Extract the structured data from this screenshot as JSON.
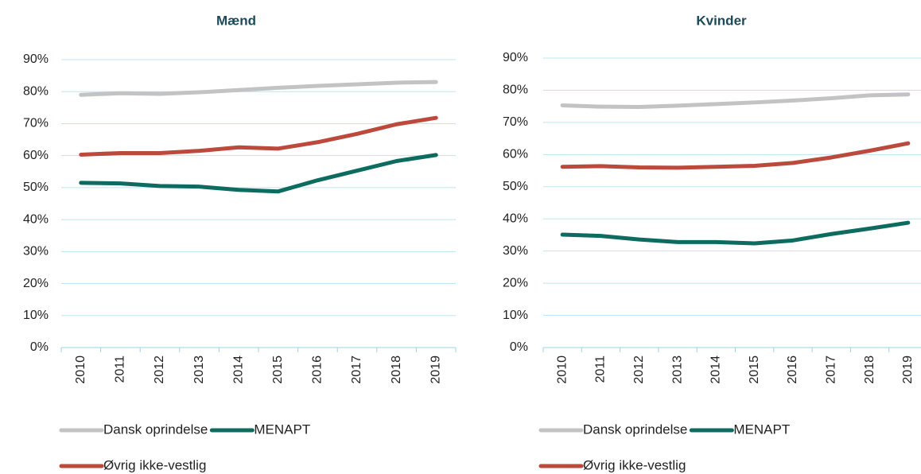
{
  "chart_data": [
    {
      "type": "line",
      "title": "Mænd",
      "categories": [
        "2010",
        "2011",
        "2012",
        "2013",
        "2014",
        "2015",
        "2016",
        "2017",
        "2018",
        "2019"
      ],
      "series": [
        {
          "name": "Dansk oprindelse",
          "color": "#c3c3c3",
          "values": [
            79.0,
            79.5,
            79.3,
            79.8,
            80.5,
            81.2,
            81.8,
            82.3,
            82.8,
            83.0
          ]
        },
        {
          "name": "MENAPT",
          "color": "#0d6b60",
          "values": [
            51.5,
            51.3,
            50.5,
            50.3,
            49.3,
            48.8,
            52.3,
            55.3,
            58.3,
            60.2
          ]
        },
        {
          "name": "Øvrig ikke-vestlig",
          "color": "#bb4a3c",
          "values": [
            60.3,
            60.8,
            60.8,
            61.5,
            62.6,
            62.2,
            64.2,
            66.8,
            69.8,
            71.8
          ]
        }
      ],
      "ylim": [
        0,
        90
      ],
      "yticks": [
        {
          "value": 0,
          "label": "0%"
        },
        {
          "value": 10,
          "label": "10%"
        },
        {
          "value": 20,
          "label": "20%"
        },
        {
          "value": 30,
          "label": "30%"
        },
        {
          "value": 40,
          "label": "40%"
        },
        {
          "value": 50,
          "label": "50%"
        },
        {
          "value": 60,
          "label": "60%"
        },
        {
          "value": 70,
          "label": "70%"
        },
        {
          "value": 80,
          "label": "80%"
        },
        {
          "value": 90,
          "label": "90%"
        }
      ],
      "grid": true
    },
    {
      "type": "line",
      "title": "Kvinder",
      "categories": [
        "2010",
        "2011",
        "2012",
        "2013",
        "2014",
        "2015",
        "2016",
        "2017",
        "2018",
        "2019"
      ],
      "series": [
        {
          "name": "Dansk oprindelse",
          "color": "#c3c3c3",
          "values": [
            75.3,
            74.9,
            74.8,
            75.2,
            75.7,
            76.2,
            76.8,
            77.5,
            78.4,
            78.7
          ]
        },
        {
          "name": "MENAPT",
          "color": "#0d6b60",
          "values": [
            35.1,
            34.7,
            33.6,
            32.8,
            32.8,
            32.4,
            33.3,
            35.3,
            37.0,
            38.8
          ]
        },
        {
          "name": "Øvrig ikke-vestlig",
          "color": "#bb4a3c",
          "values": [
            56.2,
            56.4,
            56.0,
            55.9,
            56.2,
            56.5,
            57.4,
            59.1,
            61.2,
            63.5
          ]
        }
      ],
      "ylim": [
        0,
        90
      ],
      "yticks": [
        {
          "value": 0,
          "label": "0%"
        },
        {
          "value": 10,
          "label": "10%"
        },
        {
          "value": 20,
          "label": "20%"
        },
        {
          "value": 30,
          "label": "30%"
        },
        {
          "value": 40,
          "label": "40%"
        },
        {
          "value": 50,
          "label": "50%"
        },
        {
          "value": 60,
          "label": "60%"
        },
        {
          "value": 70,
          "label": "70%"
        },
        {
          "value": 80,
          "label": "80%"
        },
        {
          "value": 90,
          "label": "90%"
        }
      ],
      "grid": true
    }
  ]
}
